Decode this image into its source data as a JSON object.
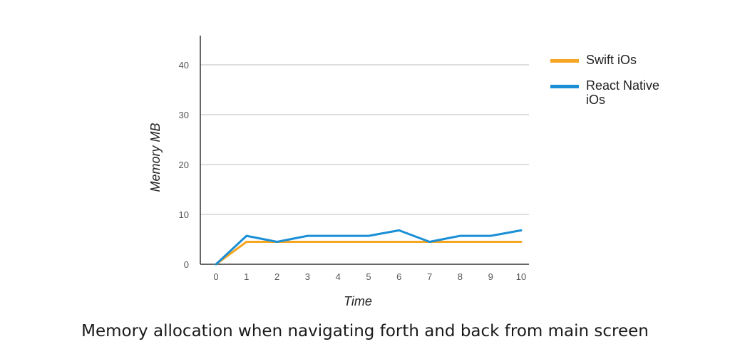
{
  "chart_data": {
    "type": "line",
    "title": "Memory allocation when navigating forth and back from main screen",
    "xlabel": "Time",
    "ylabel": "Memory MB",
    "x": [
      0,
      1,
      2,
      3,
      4,
      5,
      6,
      7,
      8,
      9,
      10
    ],
    "ylim": [
      0,
      45
    ],
    "yticks": [
      0,
      10,
      20,
      30,
      40
    ],
    "grid": true,
    "legend_position": "right",
    "series": [
      {
        "name": "Swift iOs",
        "color": "#f5a623",
        "values": [
          0,
          4.5,
          4.5,
          4.5,
          4.5,
          4.5,
          4.5,
          4.5,
          4.5,
          4.5,
          4.5
        ]
      },
      {
        "name": "React Native iOs",
        "color": "#1a8fd6",
        "values": [
          0,
          5.7,
          4.5,
          5.7,
          5.7,
          5.7,
          6.8,
          4.5,
          5.7,
          5.7,
          6.8
        ]
      }
    ]
  }
}
